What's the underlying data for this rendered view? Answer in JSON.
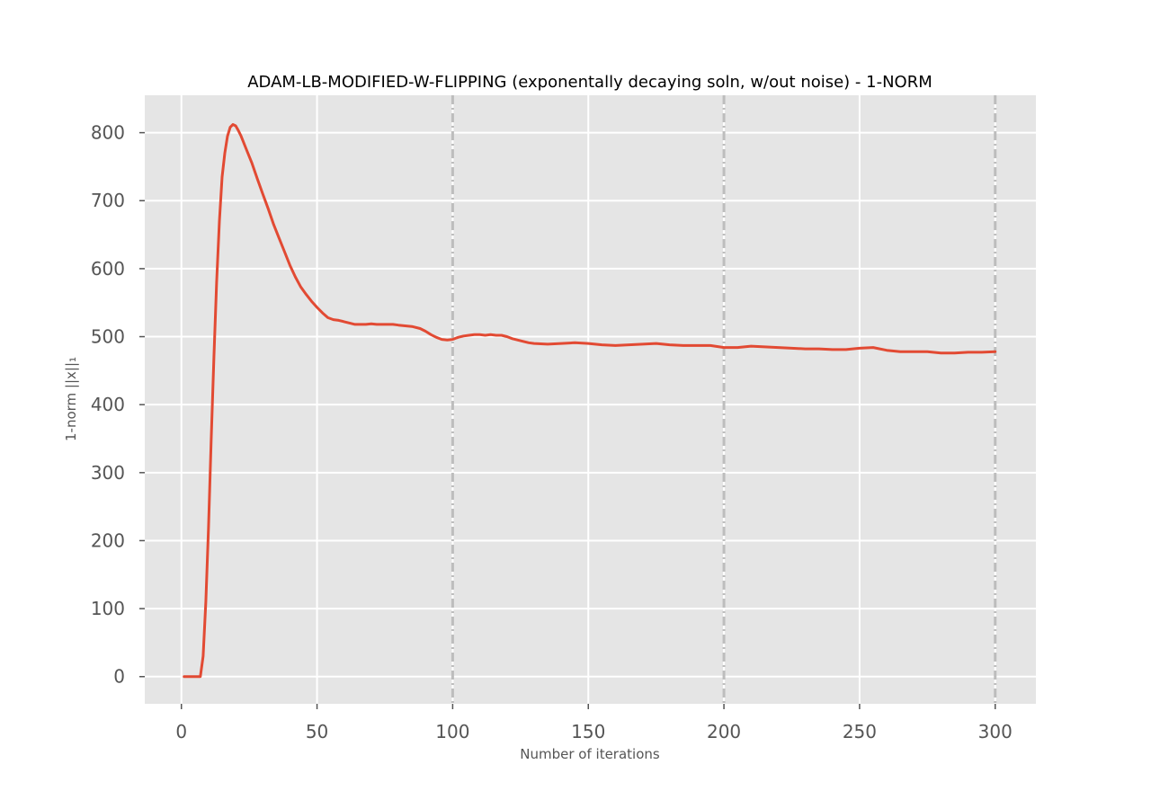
{
  "chart_data": {
    "type": "line",
    "title": "ADAM-LB-MODIFIED-W-FLIPPING (exponentally decaying soln, w/out noise) - 1-NORM",
    "xlabel": "Number of iterations",
    "ylabel": "1-norm ||x||₁",
    "xlim": [
      -13.5,
      315
    ],
    "ylim": [
      -40,
      855
    ],
    "xticks": [
      0,
      50,
      100,
      150,
      200,
      250,
      300
    ],
    "yticks": [
      0,
      100,
      200,
      300,
      400,
      500,
      600,
      700,
      800
    ],
    "grid": true,
    "legend": "none",
    "vlines": [
      100,
      200,
      300
    ],
    "series": [
      {
        "color": "#E24A33",
        "x": [
          1,
          3,
          5,
          6,
          7,
          8,
          9,
          10,
          11,
          12,
          13,
          14,
          15,
          16,
          17,
          18,
          19,
          20,
          21,
          22,
          24,
          26,
          28,
          30,
          32,
          34,
          36,
          38,
          40,
          42,
          44,
          46,
          48,
          50,
          52,
          54,
          56,
          58,
          60,
          62,
          64,
          66,
          68,
          70,
          72,
          74,
          76,
          78,
          80,
          85,
          88,
          90,
          92,
          94,
          96,
          98,
          100,
          102,
          104,
          106,
          108,
          110,
          112,
          114,
          116,
          118,
          120,
          122,
          124,
          126,
          128,
          130,
          135,
          140,
          145,
          150,
          155,
          160,
          165,
          170,
          175,
          180,
          185,
          190,
          195,
          200,
          205,
          210,
          215,
          220,
          225,
          230,
          235,
          240,
          245,
          250,
          255,
          260,
          265,
          270,
          275,
          280,
          285,
          290,
          295,
          300
        ],
        "values": [
          0,
          0,
          0,
          0,
          0,
          30,
          110,
          220,
          350,
          470,
          580,
          670,
          735,
          770,
          795,
          808,
          812,
          810,
          803,
          795,
          775,
          755,
          732,
          710,
          688,
          665,
          645,
          625,
          605,
          588,
          573,
          562,
          552,
          543,
          535,
          528,
          525,
          524,
          522,
          520,
          518,
          518,
          518,
          519,
          518,
          518,
          518,
          518,
          517,
          515,
          512,
          508,
          503,
          499,
          496,
          495,
          496,
          499,
          501,
          502,
          503,
          503,
          502,
          503,
          502,
          502,
          500,
          497,
          495,
          493,
          491,
          490,
          489,
          490,
          491,
          490,
          488,
          487,
          488,
          489,
          490,
          488,
          487,
          487,
          487,
          484,
          484,
          486,
          485,
          484,
          483,
          482,
          482,
          481,
          481,
          483,
          484,
          480,
          478,
          478,
          478,
          476,
          476,
          477,
          477,
          478
        ]
      }
    ]
  }
}
